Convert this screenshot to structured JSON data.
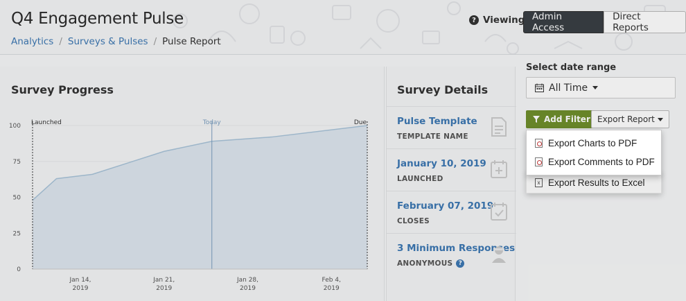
{
  "header": {
    "title": "Q4 Engagement Pulse",
    "breadcrumb": [
      "Analytics",
      "Surveys & Pulses",
      "Pulse Report"
    ],
    "viewing_label": "Viewing",
    "viewing_options": [
      "Admin Access",
      "Direct Reports"
    ]
  },
  "progress": {
    "title": "Survey Progress"
  },
  "chart_data": {
    "type": "area",
    "annotations": [
      "Launched",
      "Today",
      "Due"
    ],
    "y_ticks": [
      100,
      75,
      50,
      25,
      0
    ],
    "x_ticks": [
      {
        "line1": "Jan 14,",
        "line2": "2019"
      },
      {
        "line1": "Jan 21,",
        "line2": "2019"
      },
      {
        "line1": "Jan 28,",
        "line2": "2019"
      },
      {
        "line1": "Feb 4,",
        "line2": "2019"
      }
    ],
    "ylim": [
      0,
      100
    ],
    "x_start": "2019-01-10",
    "x_end": "2019-02-07",
    "today": "2019-01-25",
    "points": [
      {
        "x": "2019-01-10",
        "y": 48
      },
      {
        "x": "2019-01-12",
        "y": 63
      },
      {
        "x": "2019-01-15",
        "y": 66
      },
      {
        "x": "2019-01-18",
        "y": 74
      },
      {
        "x": "2019-01-21",
        "y": 82
      },
      {
        "x": "2019-01-25",
        "y": 89
      },
      {
        "x": "2019-01-30",
        "y": 92
      },
      {
        "x": "2019-02-07",
        "y": 100
      }
    ],
    "fill_color": "#dde6ee",
    "line_color": "#a8c3d9",
    "today_color": "#7a9ec0"
  },
  "details": {
    "title": "Survey Details",
    "items": [
      {
        "value": "Pulse Template",
        "label": "TEMPLATE NAME",
        "icon": "document-icon"
      },
      {
        "value": "January 10, 2019",
        "label": "LAUNCHED",
        "icon": "calendar-plus-icon"
      },
      {
        "value": "February 07, 2019",
        "label": "CLOSES",
        "icon": "calendar-check-icon"
      },
      {
        "value": "3 Minimum Responses",
        "label": "ANONYMOUS",
        "icon": "anonymous-user-icon"
      }
    ]
  },
  "controls": {
    "date_range_label": "Select date range",
    "date_range_value": "All Time",
    "add_filter_label": "Add Filter",
    "export_label": "Export Report"
  },
  "export_menu": {
    "items": [
      {
        "label": "Export Charts to PDF",
        "icon": "pdf-icon"
      },
      {
        "label": "Export Comments to PDF",
        "icon": "pdf-icon"
      },
      {
        "label": "Export Results to Excel",
        "icon": "excel-icon"
      }
    ]
  },
  "colors": {
    "accent_blue": "#3d78b3",
    "filter_green": "#6f8f2c",
    "dark_toggle": "#3a3f44"
  }
}
